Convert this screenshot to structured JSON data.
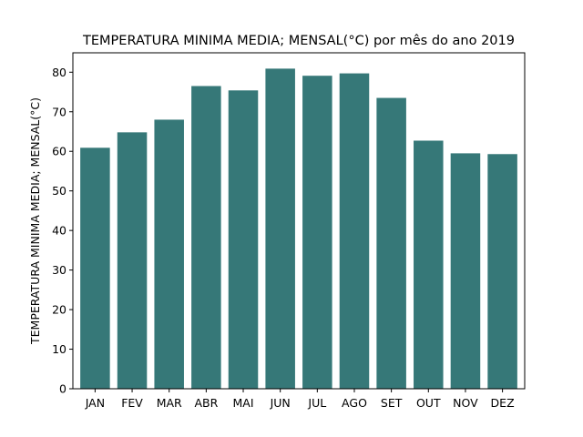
{
  "chart_data": {
    "type": "bar",
    "title": "TEMPERATURA MINIMA MEDIA; MENSAL(°C) por mês do ano 2019",
    "xlabel": "",
    "ylabel": "TEMPERATURA MINIMA MEDIA; MENSAL(°C)",
    "categories": [
      "JAN",
      "FEV",
      "MAR",
      "ABR",
      "MAI",
      "JUN",
      "JUL",
      "AGO",
      "SET",
      "OUT",
      "NOV",
      "DEZ"
    ],
    "values": [
      60.9,
      64.8,
      68.0,
      76.5,
      75.4,
      80.9,
      79.1,
      79.7,
      73.5,
      62.7,
      59.5,
      59.3
    ],
    "ylim": [
      0,
      84.9
    ],
    "yticks": [
      0,
      10,
      20,
      30,
      40,
      50,
      60,
      70,
      80
    ],
    "bar_color": "#367878",
    "grid": false,
    "legend": "none"
  }
}
